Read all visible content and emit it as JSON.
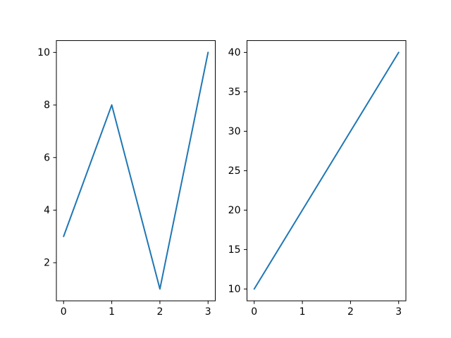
{
  "figure": {
    "background": "#ffffff",
    "spine_color": "#000000",
    "tick_label_color": "#000000"
  },
  "chart_data": [
    {
      "type": "line",
      "title": "",
      "xlabel": "",
      "ylabel": "",
      "x": [
        0,
        1,
        2,
        3
      ],
      "y": [
        3,
        8,
        1,
        10
      ],
      "xlim": [
        -0.15,
        3.15
      ],
      "ylim": [
        0.55,
        10.45
      ],
      "xticks": [
        0,
        1,
        2,
        3
      ],
      "xtick_labels": [
        "0",
        "1",
        "2",
        "3"
      ],
      "yticks": [
        2,
        4,
        6,
        8,
        10
      ],
      "ytick_labels": [
        "2",
        "4",
        "6",
        "8",
        "10"
      ],
      "line_color": "#1f77b4",
      "grid": false,
      "legend": null
    },
    {
      "type": "line",
      "title": "",
      "xlabel": "",
      "ylabel": "",
      "x": [
        0,
        1,
        2,
        3
      ],
      "y": [
        10,
        20,
        30,
        40
      ],
      "xlim": [
        -0.15,
        3.15
      ],
      "ylim": [
        8.5,
        41.5
      ],
      "xticks": [
        0,
        1,
        2,
        3
      ],
      "xtick_labels": [
        "0",
        "1",
        "2",
        "3"
      ],
      "yticks": [
        10,
        15,
        20,
        25,
        30,
        35,
        40
      ],
      "ytick_labels": [
        "10",
        "15",
        "20",
        "25",
        "30",
        "35",
        "40"
      ],
      "line_color": "#1f77b4",
      "grid": false,
      "legend": null
    }
  ]
}
